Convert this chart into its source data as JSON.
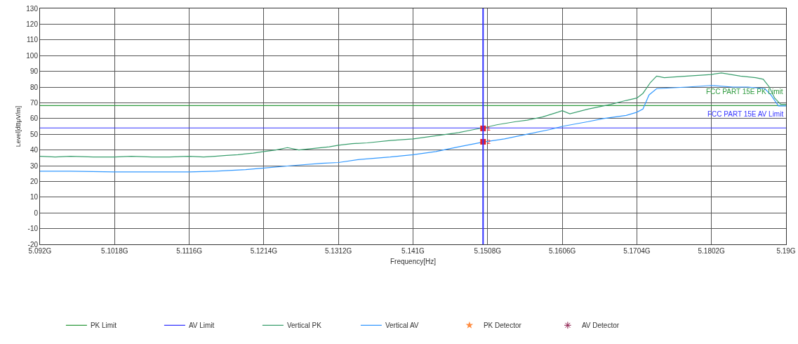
{
  "chart_data": {
    "type": "line",
    "xlabel": "Frequency[Hz]",
    "ylabel": "Level[dBμV/m]",
    "xlim": [
      5.092,
      5.19
    ],
    "xticks": [
      {
        "value": 5.092,
        "label": "5.092G"
      },
      {
        "value": 5.1018,
        "label": "5.1018G"
      },
      {
        "value": 5.1116,
        "label": "5.1116G"
      },
      {
        "value": 5.1214,
        "label": "5.1214G"
      },
      {
        "value": 5.1312,
        "label": "5.1312G"
      },
      {
        "value": 5.141,
        "label": "5.141G"
      },
      {
        "value": 5.1508,
        "label": "5.1508G"
      },
      {
        "value": 5.1606,
        "label": "5.1606G"
      },
      {
        "value": 5.1704,
        "label": "5.1704G"
      },
      {
        "value": 5.1802,
        "label": "5.1802G"
      },
      {
        "value": 5.19,
        "label": "5.19G"
      }
    ],
    "ylim": [
      -20,
      130
    ],
    "yticks": [
      -20,
      -10,
      0,
      10,
      20,
      30,
      40,
      50,
      60,
      70,
      80,
      90,
      100,
      110,
      120,
      130
    ],
    "grid": true,
    "legend": "bottom",
    "series": [
      {
        "name": "PK Limit",
        "color": "#2e9a3e",
        "x": [
          5.092,
          5.19
        ],
        "values": [
          68.2,
          68.2
        ]
      },
      {
        "name": "AV Limit",
        "color": "#3333ff",
        "x": [
          5.092,
          5.19
        ],
        "values": [
          54,
          54
        ]
      },
      {
        "name": "Vertical PK",
        "color": "#3a9f6e",
        "x": [
          5.092,
          5.094,
          5.096,
          5.099,
          5.1018,
          5.104,
          5.1067,
          5.109,
          5.1116,
          5.1135,
          5.115,
          5.1165,
          5.118,
          5.119,
          5.12,
          5.1214,
          5.123,
          5.1245,
          5.126,
          5.128,
          5.13,
          5.1312,
          5.133,
          5.135,
          5.138,
          5.141,
          5.144,
          5.147,
          5.149,
          5.1502,
          5.152,
          5.1545,
          5.156,
          5.158,
          5.16,
          5.1606,
          5.1616,
          5.164,
          5.167,
          5.169,
          5.1704,
          5.1712,
          5.1722,
          5.173,
          5.174,
          5.177,
          5.1802,
          5.1815,
          5.184,
          5.186,
          5.187,
          5.1878,
          5.1885,
          5.1893,
          5.19
        ],
        "values": [
          36,
          35.5,
          36,
          35.5,
          35.5,
          36,
          35.5,
          35.5,
          36,
          35.5,
          36,
          36.5,
          37,
          37.5,
          38,
          39,
          40,
          41.5,
          40,
          41,
          42,
          43,
          44,
          44.5,
          46,
          47,
          49,
          51,
          53,
          54,
          56,
          58,
          59,
          61,
          64,
          65,
          63,
          66,
          69,
          71.5,
          73,
          76,
          83,
          87,
          86,
          87,
          88,
          89,
          87,
          86,
          85,
          80,
          73,
          69,
          69
        ]
      },
      {
        "name": "Vertical AV",
        "color": "#3399ff",
        "x": [
          5.092,
          5.096,
          5.1018,
          5.106,
          5.1116,
          5.115,
          5.119,
          5.1214,
          5.125,
          5.129,
          5.1312,
          5.134,
          5.138,
          5.141,
          5.144,
          5.147,
          5.1502,
          5.153,
          5.156,
          5.159,
          5.1606,
          5.164,
          5.166,
          5.169,
          5.1704,
          5.1712,
          5.172,
          5.173,
          5.177,
          5.1802,
          5.183,
          5.185,
          5.1872,
          5.188,
          5.189,
          5.19
        ],
        "values": [
          26.5,
          26.5,
          26,
          26,
          26,
          26.5,
          27.5,
          28.5,
          30,
          31.5,
          32,
          34,
          35.5,
          37,
          39,
          42,
          45,
          47,
          50,
          53,
          55,
          58,
          60,
          62,
          64,
          66,
          75,
          79,
          80,
          81,
          80,
          80,
          79,
          75,
          68,
          68
        ]
      },
      {
        "name": "PK Detector",
        "type": "scatter",
        "marker": "star",
        "color": "#ff8c40",
        "x": [
          null
        ],
        "values": [
          null
        ]
      },
      {
        "name": "AV Detector",
        "type": "scatter",
        "marker": "cross",
        "color": "#8b1a4a",
        "x": [
          null
        ],
        "values": [
          null
        ]
      },
      {
        "type": "scatter",
        "marker": "square",
        "color": "#e8202a",
        "x": [
          5.1502,
          5.1502
        ],
        "values": [
          53.7,
          45.2
        ]
      }
    ],
    "ref_lines": [
      {
        "axis": "x",
        "value": 5.1502,
        "color": "#3333ff"
      }
    ],
    "annotations": [
      "FCC PART 15E PK Limit",
      "FCC PART 15E AV Limit",
      {
        "text": "1",
        "x": 5.1502,
        "y": 53.7
      },
      {
        "text": "2",
        "x": 5.1502,
        "y": 45.2
      }
    ]
  }
}
